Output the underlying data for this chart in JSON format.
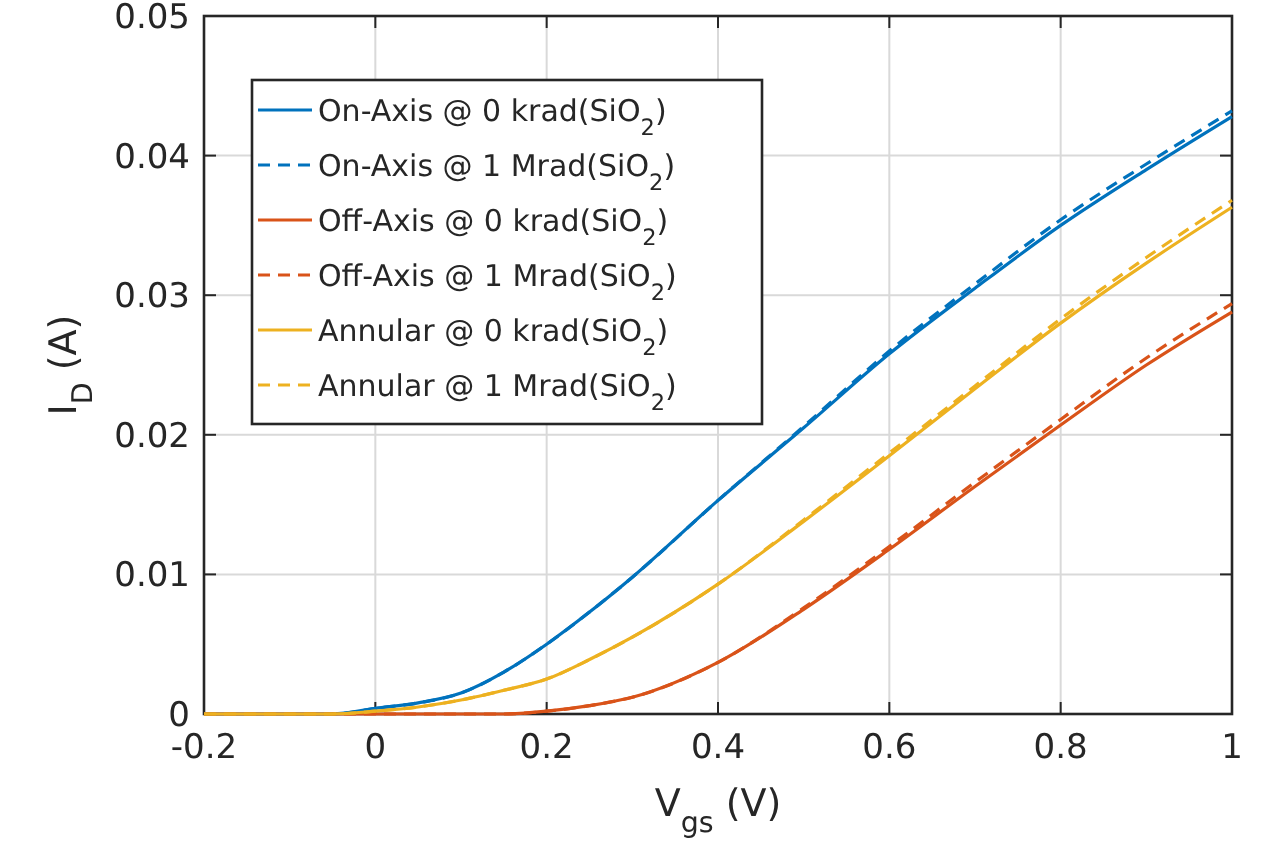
{
  "chart_data": {
    "type": "line",
    "xlabel": "V$_{gs}$ (V)",
    "ylabel": "I$_{D}$ (A)",
    "x": [
      -0.2,
      -0.1,
      -0.05,
      0,
      0.05,
      0.1,
      0.15,
      0.2,
      0.25,
      0.3,
      0.4,
      0.5,
      0.6,
      0.7,
      0.8,
      0.9,
      1.0
    ],
    "series": [
      {
        "name": "On-Axis @ 0 krad(SiO$_{2}$)",
        "color": "#0072bd",
        "line_style": "solid",
        "values": [
          0,
          0,
          0,
          0.0004,
          0.0008,
          0.0015,
          0.003,
          0.005,
          0.0073,
          0.0098,
          0.0153,
          0.0205,
          0.0258,
          0.0305,
          0.035,
          0.039,
          0.0428
        ]
      },
      {
        "name": "On-Axis @ 1 Mrad(SiO$_{2}$)",
        "color": "#0072bd",
        "line_style": "dashed",
        "values": [
          0,
          0,
          0,
          0.0004,
          0.0008,
          0.0015,
          0.003,
          0.005,
          0.0073,
          0.0098,
          0.0153,
          0.0206,
          0.026,
          0.0308,
          0.0354,
          0.0394,
          0.0432
        ]
      },
      {
        "name": "Off-Axis @ 0 krad(SiO$_{2}$)",
        "color": "#d95319",
        "line_style": "solid",
        "values": [
          0,
          0,
          0,
          0,
          0,
          0,
          0,
          0.0002,
          0.0006,
          0.0012,
          0.0037,
          0.0075,
          0.0118,
          0.0163,
          0.0207,
          0.025,
          0.0288
        ]
      },
      {
        "name": "Off-Axis @ 1 Mrad(SiO$_{2}$)",
        "color": "#d95319",
        "line_style": "dashed",
        "values": [
          0,
          0,
          0,
          0,
          0,
          0,
          0,
          0.0002,
          0.0006,
          0.0012,
          0.0037,
          0.0076,
          0.012,
          0.0166,
          0.0211,
          0.0255,
          0.0294
        ]
      },
      {
        "name": "Annular @ 0 krad(SiO$_{2}$)",
        "color": "#edb120",
        "line_style": "solid",
        "values": [
          0,
          0,
          0,
          0.0002,
          0.0005,
          0.001,
          0.0017,
          0.0025,
          0.0039,
          0.0055,
          0.0093,
          0.0138,
          0.0185,
          0.0233,
          0.028,
          0.0323,
          0.0363
        ]
      },
      {
        "name": "Annular @ 1 Mrad(SiO$_{2}$)",
        "color": "#edb120",
        "line_style": "dashed",
        "values": [
          0,
          0,
          0,
          0.0002,
          0.0005,
          0.001,
          0.0017,
          0.0025,
          0.0039,
          0.0055,
          0.0093,
          0.0139,
          0.0187,
          0.0235,
          0.0283,
          0.0327,
          0.0368
        ]
      }
    ],
    "xlim": [
      -0.2,
      1
    ],
    "xticks": [
      {
        "value": -0.2,
        "label": "-0.2"
      },
      0,
      0.2,
      0.4,
      0.6,
      0.8,
      1
    ],
    "ylim": [
      0,
      0.05
    ],
    "yticks": [
      0,
      0.01,
      0.02,
      0.03,
      0.04,
      0.05
    ],
    "grid": true,
    "legend": "top left"
  }
}
